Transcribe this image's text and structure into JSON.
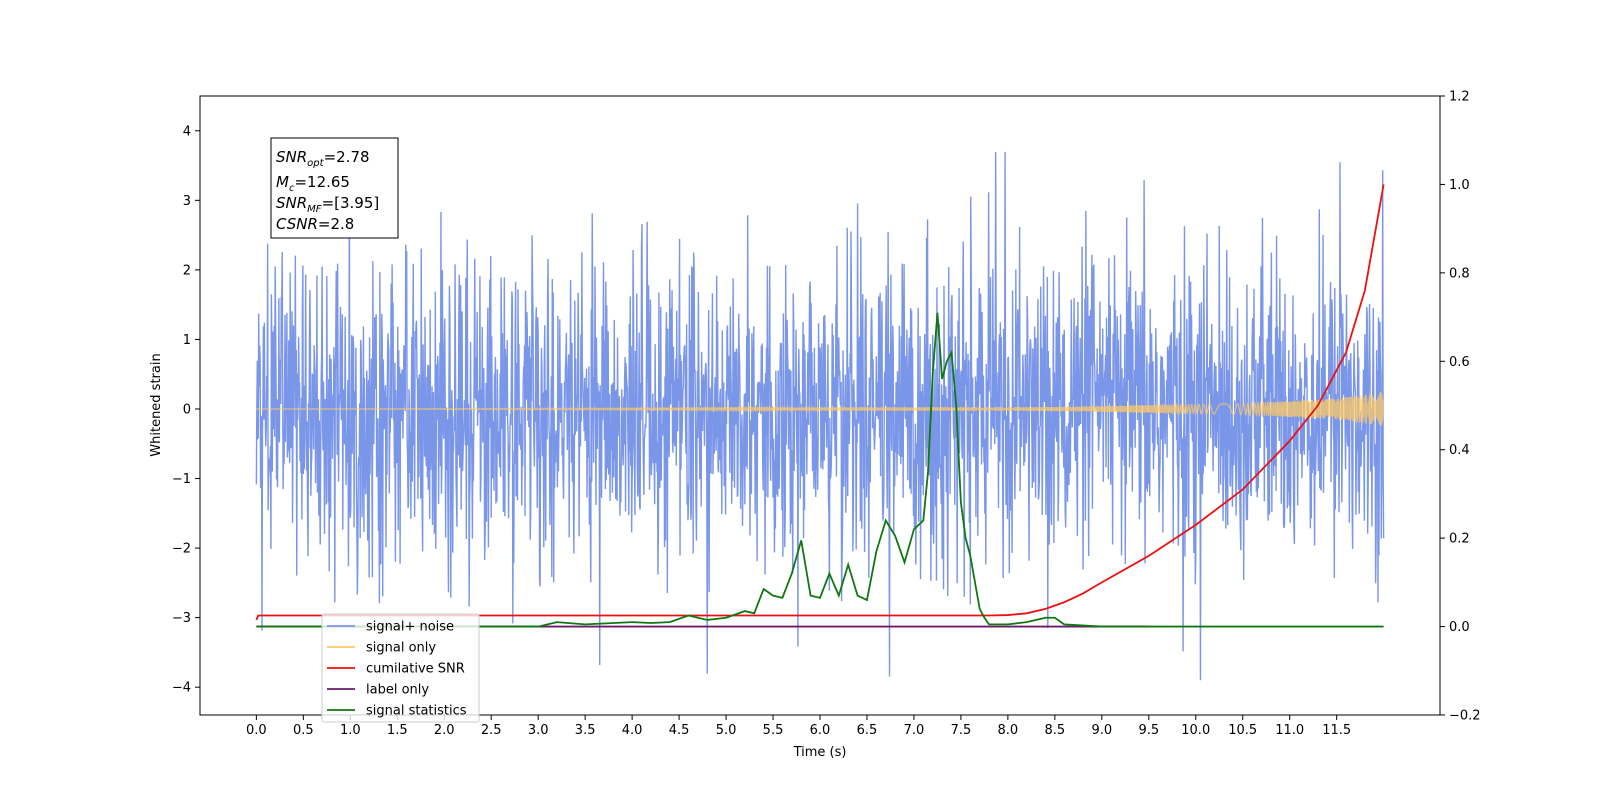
{
  "chart_data": {
    "type": "line",
    "title": "",
    "xlabel": "Time (s)",
    "ylabel": "Whitened strain",
    "y2label": "",
    "xlim": [
      -0.6,
      12.6
    ],
    "ylim": [
      -4.4,
      4.5
    ],
    "y2lim": [
      -0.2,
      1.2
    ],
    "x_ticks": [
      "0.0",
      "0.5",
      "1.0",
      "1.5",
      "2.0",
      "2.5",
      "3.0",
      "3.5",
      "4.0",
      "4.5",
      "5.0",
      "5.5",
      "6.0",
      "6.5",
      "7.0",
      "7.5",
      "8.0",
      "8.5",
      "9.0",
      "9.5",
      "10.0",
      "10.5",
      "11.0",
      "11.5"
    ],
    "y_ticks": [
      "4",
      "3",
      "2",
      "1",
      "0",
      "−1",
      "−2",
      "−3",
      "−4"
    ],
    "y2_ticks": [
      "1.2",
      "1.0",
      "0.8",
      "0.6",
      "0.4",
      "0.2",
      "0.0",
      "−0.2"
    ],
    "grid": false,
    "legend_position": "lower-left",
    "stats_box": {
      "snr_opt": {
        "base": "SNR",
        "sub": "opt",
        "value": "=2.78"
      },
      "mc": {
        "base": "M",
        "sub": "c",
        "value": "=12.65"
      },
      "snr_mf": {
        "base": "SNR",
        "sub": "MF",
        "value": "=[3.95]"
      },
      "csnr": {
        "base": "CSNR",
        "sub": "",
        "value": "=2.8"
      }
    },
    "series": [
      {
        "name": "signal+ noise",
        "color": "#7a96e8",
        "axis": "left",
        "description_range": [
          -3.9,
          4.1
        ],
        "x_range": [
          0.0,
          12.0
        ]
      },
      {
        "name": "signal only",
        "color": "#ffc966",
        "axis": "left",
        "amplitude_growth": [
          [
            0,
            0.0
          ],
          [
            8.5,
            0.03
          ],
          [
            10.5,
            0.08
          ],
          [
            11.5,
            0.15
          ],
          [
            12.0,
            0.25
          ]
        ]
      },
      {
        "name": "cumilative SNR",
        "color": "#ee1111",
        "axis": "right",
        "x": [
          0.0,
          0.02,
          7.8,
          8.0,
          8.2,
          8.4,
          8.6,
          8.8,
          9.0,
          9.5,
          10.0,
          10.5,
          11.0,
          11.3,
          11.6,
          11.8,
          12.0
        ],
        "y": [
          0.015,
          0.025,
          0.025,
          0.026,
          0.03,
          0.04,
          0.055,
          0.075,
          0.1,
          0.16,
          0.23,
          0.31,
          0.42,
          0.5,
          0.62,
          0.76,
          1.0
        ]
      },
      {
        "name": "label only",
        "color": "#6a1b6a",
        "axis": "right",
        "x": [
          0.0,
          9.5
        ],
        "y": [
          0.0,
          0.0
        ]
      },
      {
        "name": "signal statistics",
        "color": "#117711",
        "axis": "right",
        "x": [
          0.0,
          3.0,
          3.2,
          3.5,
          4.0,
          4.2,
          4.4,
          4.6,
          4.8,
          5.0,
          5.2,
          5.3,
          5.4,
          5.5,
          5.6,
          5.7,
          5.8,
          5.9,
          6.0,
          6.1,
          6.2,
          6.3,
          6.4,
          6.5,
          6.6,
          6.7,
          6.8,
          6.9,
          7.0,
          7.1,
          7.15,
          7.2,
          7.25,
          7.3,
          7.35,
          7.4,
          7.45,
          7.5,
          7.55,
          7.6,
          7.7,
          7.75,
          7.8,
          7.9,
          8.0,
          8.2,
          8.4,
          8.5,
          8.6,
          9.0,
          12.0
        ],
        "y": [
          0.0,
          0.0,
          0.01,
          0.005,
          0.01,
          0.008,
          0.01,
          0.025,
          0.015,
          0.02,
          0.035,
          0.03,
          0.085,
          0.07,
          0.065,
          0.12,
          0.195,
          0.07,
          0.065,
          0.12,
          0.07,
          0.14,
          0.07,
          0.06,
          0.17,
          0.24,
          0.205,
          0.145,
          0.22,
          0.24,
          0.35,
          0.57,
          0.71,
          0.56,
          0.6,
          0.62,
          0.5,
          0.28,
          0.2,
          0.16,
          0.04,
          0.02,
          0.005,
          0.005,
          0.005,
          0.01,
          0.02,
          0.02,
          0.005,
          0.0,
          0.0
        ]
      }
    ]
  }
}
